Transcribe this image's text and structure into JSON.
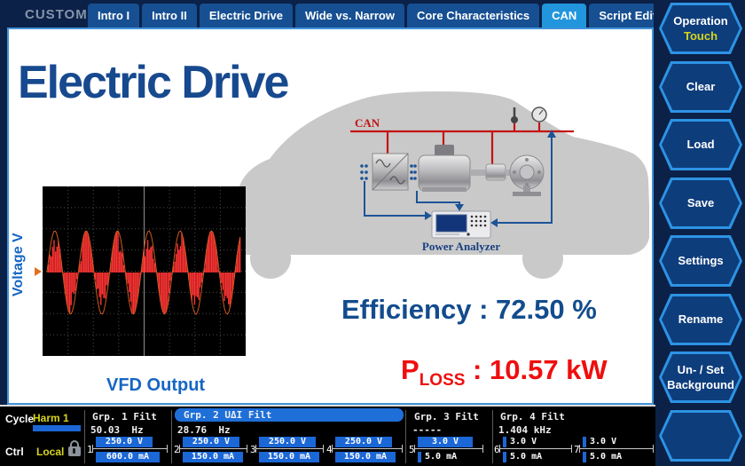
{
  "header": {
    "custom_label": "CUSTOM",
    "tabs": [
      {
        "label": "Intro I"
      },
      {
        "label": "Intro II"
      },
      {
        "label": "Electric Drive"
      },
      {
        "label": "Wide vs. Narrow"
      },
      {
        "label": "Core Characteristics"
      },
      {
        "label": "CAN",
        "active": true
      },
      {
        "label": "Script Editor"
      }
    ]
  },
  "sidebar": {
    "buttons": [
      {
        "line1": "Operation",
        "line2": "Touch"
      },
      {
        "line1": "Clear",
        "line2": ""
      },
      {
        "line1": "Load",
        "line2": ""
      },
      {
        "line1": "Save",
        "line2": ""
      },
      {
        "line1": "Settings",
        "line2": ""
      },
      {
        "line1": "Rename",
        "line2": ""
      },
      {
        "line1": "Un- / Set",
        "line2": "Background"
      },
      {
        "line1": "",
        "line2": ""
      }
    ]
  },
  "main": {
    "title": "Electric Drive",
    "diagram": {
      "can_label": "CAN",
      "analyzer_label": "Power Analyzer"
    },
    "scope": {
      "ylabel": "Voltage V",
      "caption": "VFD Output",
      "cycles": 6.2,
      "amplitude": 47,
      "wave_color": "#ff3333",
      "envelope_color": "#cf5a20"
    },
    "efficiency_label": "Efficiency",
    "efficiency_value": "72.50 %",
    "ploss_label": "P",
    "ploss_sub": "LOSS",
    "ploss_value": "10.57 kW"
  },
  "statusbar": {
    "cycle_label": "Cycle",
    "cycle_value": "Harm 1",
    "ctrl_label": "Ctrl",
    "ctrl_value": "Local",
    "cols": [
      {
        "name": "Grp. 1 Filt",
        "freq": "50.03  Hz"
      },
      {
        "name": "Grp. 2 UΔI Filt",
        "freq": "28.76  Hz",
        "selected": true
      },
      {
        "name": "Grp. 3 Filt",
        "freq": "-----"
      },
      {
        "name": "Grp. 4 Filt",
        "freq": "1.404 kHz"
      }
    ],
    "channels": [
      {
        "n": "1",
        "v": "250.0 V",
        "a": "600.0 mA"
      },
      {
        "n": "2",
        "v": "250.0 V",
        "a": "150.0 mA"
      },
      {
        "n": "3",
        "v": "250.0 V",
        "a": "150.0 mA"
      },
      {
        "n": "4",
        "v": "250.0 V",
        "a": "150.0 mA"
      },
      {
        "n": "5",
        "v": "3.0 V",
        "a": "5.0 mA"
      },
      {
        "n": "6",
        "v": "3.0 V",
        "a": "5.0 mA"
      },
      {
        "n": "7",
        "v": "3.0 V",
        "a": "5.0 mA"
      }
    ]
  },
  "colors": {
    "tab_active": "#2196dd",
    "bar_blue": "#1b67d6",
    "accent_yellow": "#d6d41e",
    "title_blue": "#17498f",
    "loss_red": "#ef0e0e",
    "can_red": "#c41212"
  }
}
